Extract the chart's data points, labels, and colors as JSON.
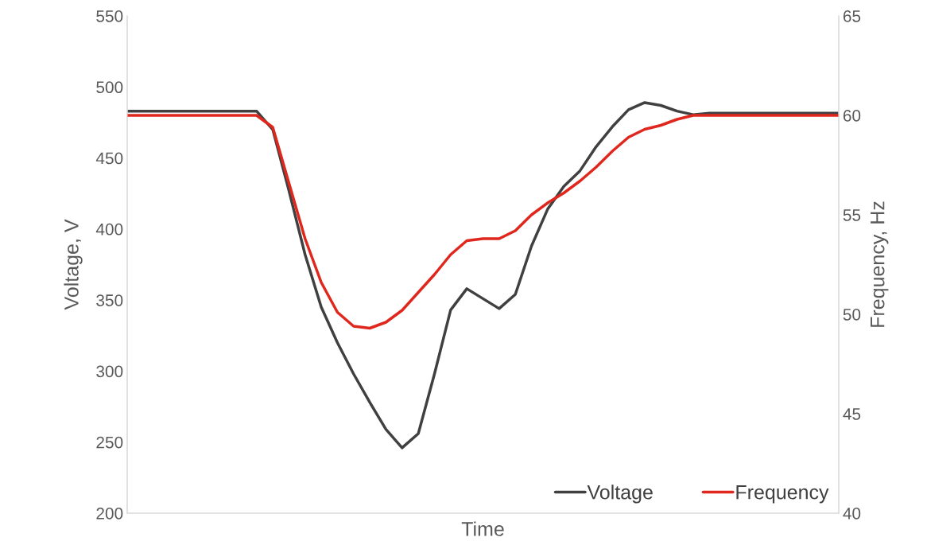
{
  "chart_data": {
    "type": "line",
    "xlabel": "Time",
    "ylabel": "Voltage, V",
    "y2label": "Frequency, Hz",
    "categories": [
      null,
      null,
      null,
      null,
      null,
      null,
      null,
      null,
      null,
      null,
      null,
      null,
      null,
      null,
      null,
      null,
      null,
      null,
      null,
      null,
      null,
      null,
      null,
      null,
      null,
      null,
      null,
      null,
      null,
      null,
      null,
      null,
      null,
      null,
      null,
      null,
      null,
      null,
      null,
      null,
      null,
      null,
      null,
      null,
      null
    ],
    "series": [
      {
        "name": "Voltage",
        "color": "#404040",
        "values": [
          483,
          483,
          483,
          483,
          483,
          483,
          483,
          483,
          483,
          470,
          427,
          382,
          345,
          320,
          298,
          278,
          259,
          246,
          256,
          298,
          343,
          358,
          351,
          344,
          354,
          388,
          414,
          430,
          441,
          458,
          472,
          484,
          489,
          487,
          483,
          480.5,
          481.5,
          481.5,
          481.5,
          481.5,
          481.5,
          481.5,
          481.5,
          481.5,
          481.5
        ]
      },
      {
        "name": "Frequency",
        "color": "#e0271e",
        "axis": "y2",
        "values": [
          60,
          60,
          60,
          60,
          60,
          60,
          60,
          60,
          60,
          59.4,
          56.6,
          53.8,
          51.6,
          50.1,
          49.4,
          49.3,
          49.6,
          50.2,
          51.1,
          52,
          53,
          53.7,
          53.8,
          53.8,
          54.2,
          55,
          55.6,
          56.1,
          56.7,
          57.4,
          58.2,
          58.9,
          59.3,
          59.5,
          59.8,
          60,
          60,
          60,
          60,
          60,
          60,
          60,
          60,
          60,
          60
        ]
      }
    ],
    "ylim": [
      200,
      550
    ],
    "yticks": [
      200,
      250,
      300,
      350,
      400,
      450,
      500,
      550
    ],
    "y2lim": [
      40,
      65
    ],
    "y2ticks": [
      40,
      45,
      50,
      55,
      60,
      65
    ],
    "grid": false,
    "legend": "bottom right",
    "line_style": "solid",
    "marker": "none"
  }
}
